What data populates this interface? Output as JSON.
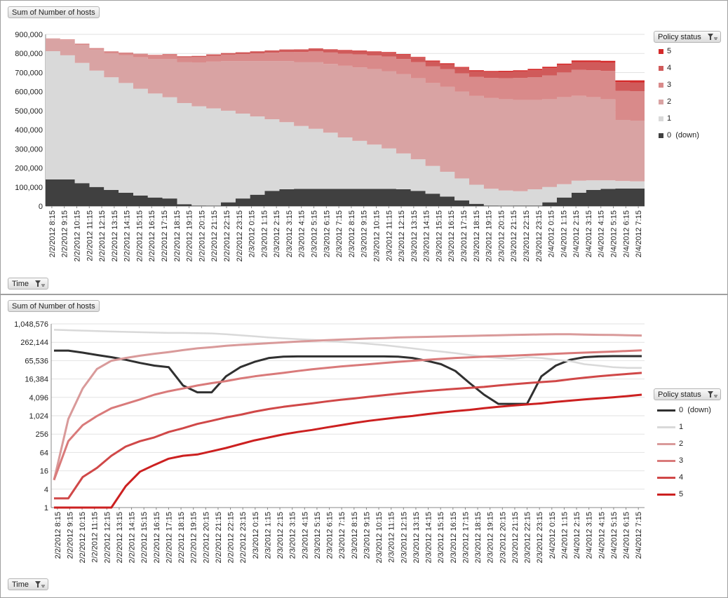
{
  "top_panel": {
    "value_button": "Sum of Number of hosts",
    "axis_button": "Time",
    "legend_button": "Policy status"
  },
  "bottom_panel": {
    "value_button": "Sum of Number of hosts",
    "axis_button": "Time",
    "legend_button": "Policy status"
  },
  "chart_data": [
    {
      "type": "area",
      "stacked": true,
      "y_ticks": [
        "0",
        "100,000",
        "200,000",
        "300,000",
        "400,000",
        "500,000",
        "600,000",
        "700,000",
        "800,000",
        "900,000"
      ],
      "ylim": [
        0,
        900000
      ],
      "x_ticks": [
        "2/2/2012 8:15",
        "2/2/2012 9:15",
        "2/2/2012 10:15",
        "2/2/2012 11:15",
        "2/2/2012 12:15",
        "2/2/2012 13:15",
        "2/2/2012 14:15",
        "2/2/2012 15:15",
        "2/2/2012 16:15",
        "2/2/2012 17:15",
        "2/2/2012 18:15",
        "2/2/2012 19:15",
        "2/2/2012 20:15",
        "2/2/2012 21:15",
        "2/2/2012 22:15",
        "2/2/2012 23:15",
        "2/3/2012 0:15",
        "2/3/2012 1:15",
        "2/3/2012 2:15",
        "2/3/2012 3:15",
        "2/3/2012 4:15",
        "2/3/2012 5:15",
        "2/3/2012 6:15",
        "2/3/2012 7:15",
        "2/3/2012 8:15",
        "2/3/2012 9:15",
        "2/3/2012 10:15",
        "2/3/2012 11:15",
        "2/3/2012 12:15",
        "2/3/2012 13:15",
        "2/3/2012 14:15",
        "2/3/2012 15:15",
        "2/3/2012 16:15",
        "2/3/2012 17:15",
        "2/3/2012 18:15",
        "2/3/2012 19:15",
        "2/3/2012 20:15",
        "2/3/2012 21:15",
        "2/3/2012 22:15",
        "2/3/2012 23:15",
        "2/4/2012 0:15",
        "2/4/2012 1:15",
        "2/4/2012 2:15",
        "2/4/2012 3:15",
        "2/4/2012 4:15",
        "2/4/2012 5:15",
        "2/4/2012 6:15",
        "2/4/2012 7:15"
      ],
      "legend_placement": "right",
      "grid": true,
      "series": [
        {
          "name": "0  (down)",
          "color": "#404040",
          "values": [
            140000,
            140000,
            120000,
            100000,
            85000,
            70000,
            55000,
            45000,
            40000,
            10000,
            3000,
            2000,
            20000,
            40000,
            60000,
            80000,
            88000,
            90000,
            90000,
            90000,
            90000,
            90000,
            90000,
            90000,
            88000,
            80000,
            65000,
            50000,
            30000,
            12000,
            3000,
            2000,
            3000,
            3000,
            20000,
            45000,
            70000,
            85000,
            90000,
            92000,
            92000,
            92000
          ]
        },
        {
          "name": "1",
          "color": "#d9d9d9",
          "values": [
            672000,
            650000,
            630000,
            610000,
            590000,
            575000,
            560000,
            545000,
            530000,
            530000,
            520000,
            510000,
            480000,
            445000,
            410000,
            375000,
            352000,
            330000,
            315000,
            295000,
            270000,
            252000,
            232000,
            212000,
            188000,
            165000,
            145000,
            130000,
            115000,
            100000,
            88000,
            80000,
            75000,
            85000,
            80000,
            70000,
            63000,
            50000,
            45000,
            40000,
            38000,
            38000
          ]
        },
        {
          "name": "2",
          "color": "#d9a3a3",
          "values": [
            65000,
            80000,
            95000,
            110000,
            125000,
            145000,
            165000,
            180000,
            200000,
            215000,
            230000,
            245000,
            260000,
            275000,
            290000,
            305000,
            320000,
            335000,
            350000,
            360000,
            375000,
            385000,
            395000,
            405000,
            415000,
            425000,
            435000,
            445000,
            455000,
            465000,
            475000,
            478000,
            478000,
            468000,
            460000,
            455000,
            445000,
            435000,
            425000,
            320000,
            318000,
            315000
          ]
        },
        {
          "name": "3",
          "color": "#d98a8a",
          "values": [
            2000,
            4000,
            6000,
            8000,
            10000,
            13000,
            16000,
            19000,
            22000,
            25000,
            28000,
            31000,
            34000,
            37000,
            40000,
            44000,
            48000,
            52000,
            56000,
            60000,
            64000,
            68000,
            72000,
            76000,
            80000,
            84000,
            88000,
            92000,
            96000,
            100000,
            105000,
            110000,
            115000,
            120000,
            125000,
            130000,
            136000,
            142000,
            148000,
            152000,
            154000,
            156000
          ]
        },
        {
          "name": "4",
          "color": "#d05a5a",
          "values": [
            0,
            0,
            0,
            500,
            1000,
            1500,
            2000,
            3000,
            4000,
            5000,
            6000,
            7000,
            8000,
            9000,
            10000,
            11000,
            12000,
            13000,
            14000,
            15000,
            16500,
            18000,
            19500,
            21000,
            22500,
            24000,
            25500,
            27000,
            28500,
            30000,
            31500,
            33000,
            34500,
            36000,
            37500,
            39000,
            40500,
            42000,
            43500,
            45000,
            46500,
            48000
          ]
        },
        {
          "name": "5",
          "color": "#d42a2a",
          "values": [
            0,
            0,
            0,
            0,
            0,
            0,
            0,
            0,
            50,
            100,
            200,
            300,
            400,
            500,
            700,
            900,
            1100,
            1300,
            1500,
            1800,
            2100,
            2400,
            2700,
            3000,
            3300,
            3600,
            4000,
            4400,
            4800,
            5200,
            5600,
            6000,
            6500,
            7000,
            7500,
            8000,
            8500,
            9000,
            9500,
            10000,
            10500,
            11000
          ]
        }
      ]
    },
    {
      "type": "line",
      "y_scale": "log2",
      "y_ticks": [
        "1",
        "4",
        "16",
        "64",
        "256",
        "1,024",
        "4,096",
        "16,384",
        "65,536",
        "262,144",
        "1,048,576"
      ],
      "ylim": [
        1,
        1048576
      ],
      "x_ticks": [
        "2/2/2012 8:15",
        "2/2/2012 9:15",
        "2/2/2012 10:15",
        "2/2/2012 11:15",
        "2/2/2012 12:15",
        "2/2/2012 13:15",
        "2/2/2012 14:15",
        "2/2/2012 15:15",
        "2/2/2012 16:15",
        "2/2/2012 17:15",
        "2/2/2012 18:15",
        "2/2/2012 19:15",
        "2/2/2012 20:15",
        "2/2/2012 21:15",
        "2/2/2012 22:15",
        "2/2/2012 23:15",
        "2/3/2012 0:15",
        "2/3/2012 1:15",
        "2/3/2012 2:15",
        "2/3/2012 3:15",
        "2/3/2012 4:15",
        "2/3/2012 5:15",
        "2/3/2012 6:15",
        "2/3/2012 7:15",
        "2/3/2012 8:15",
        "2/3/2012 9:15",
        "2/3/2012 10:15",
        "2/3/2012 11:15",
        "2/3/2012 12:15",
        "2/3/2012 13:15",
        "2/3/2012 14:15",
        "2/3/2012 15:15",
        "2/3/2012 16:15",
        "2/3/2012 17:15",
        "2/3/2012 18:15",
        "2/3/2012 19:15",
        "2/3/2012 20:15",
        "2/3/2012 21:15",
        "2/3/2012 22:15",
        "2/3/2012 23:15",
        "2/4/2012 0:15",
        "2/4/2012 1:15",
        "2/4/2012 2:15",
        "2/4/2012 3:15",
        "2/4/2012 4:15",
        "2/4/2012 5:15",
        "2/4/2012 6:15",
        "2/4/2012 7:15"
      ],
      "legend_placement": "right",
      "grid": true,
      "series": [
        {
          "name": "0  (down)",
          "color": "#303030",
          "values": [
            140000,
            140000,
            120000,
            100000,
            85000,
            70000,
            55000,
            45000,
            40000,
            10000,
            6000,
            6000,
            20000,
            40000,
            60000,
            80000,
            88000,
            90000,
            90000,
            90000,
            90000,
            90000,
            90000,
            90000,
            88000,
            80000,
            65000,
            50000,
            30000,
            12000,
            5000,
            2500,
            2500,
            2500,
            20000,
            45000,
            70000,
            85000,
            90000,
            92000,
            92000,
            92000
          ]
        },
        {
          "name": "1",
          "color": "#d9d9d9",
          "values": [
            672000,
            650000,
            630000,
            610000,
            590000,
            575000,
            560000,
            545000,
            530000,
            530000,
            520000,
            510000,
            480000,
            445000,
            410000,
            375000,
            352000,
            330000,
            315000,
            295000,
            270000,
            252000,
            232000,
            212000,
            188000,
            165000,
            145000,
            130000,
            115000,
            100000,
            88000,
            80000,
            75000,
            85000,
            80000,
            70000,
            63000,
            50000,
            45000,
            40000,
            38000,
            38000
          ]
        },
        {
          "name": "2",
          "color": "#d99a9a",
          "values": [
            8,
            800,
            8000,
            35000,
            65000,
            80000,
            95000,
            110000,
            125000,
            145000,
            165000,
            180000,
            200000,
            215000,
            230000,
            245000,
            260000,
            275000,
            290000,
            305000,
            320000,
            335000,
            350000,
            360000,
            375000,
            385000,
            395000,
            405000,
            415000,
            425000,
            435000,
            445000,
            455000,
            465000,
            475000,
            478000,
            478000,
            468000,
            460000,
            455000,
            445000,
            435000
          ]
        },
        {
          "name": "3",
          "color": "#d97a7a",
          "values": [
            8,
            150,
            500,
            1000,
            1800,
            2500,
            3500,
            5000,
            6500,
            8000,
            10000,
            12000,
            14000,
            17000,
            20000,
            23000,
            26000,
            30000,
            34000,
            38000,
            42000,
            46000,
            50000,
            55000,
            60000,
            65000,
            70000,
            75000,
            80000,
            84000,
            88000,
            92000,
            96000,
            100000,
            105000,
            110000,
            115000,
            120000,
            125000,
            130000,
            136000,
            142000
          ]
        },
        {
          "name": "4",
          "color": "#d04848",
          "values": [
            2,
            2,
            10,
            20,
            50,
            100,
            150,
            200,
            300,
            400,
            550,
            700,
            900,
            1100,
            1400,
            1700,
            2000,
            2300,
            2600,
            3000,
            3400,
            3800,
            4300,
            4800,
            5400,
            6000,
            6600,
            7200,
            7800,
            8400,
            9000,
            10000,
            11000,
            12000,
            13000,
            14000,
            16000,
            18000,
            20000,
            22000,
            24000,
            26000
          ]
        },
        {
          "name": "5",
          "color": "#cc2020",
          "values": [
            1,
            1,
            1,
            1,
            1,
            5,
            15,
            25,
            40,
            50,
            55,
            70,
            90,
            120,
            160,
            200,
            250,
            300,
            350,
            420,
            500,
            600,
            700,
            800,
            900,
            1000,
            1150,
            1300,
            1450,
            1600,
            1800,
            2000,
            2200,
            2400,
            2600,
            2900,
            3200,
            3500,
            3800,
            4100,
            4500,
            5000
          ]
        }
      ]
    }
  ]
}
